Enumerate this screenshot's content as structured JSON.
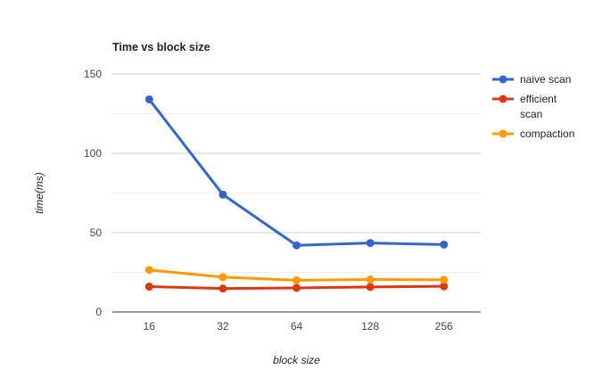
{
  "chart_data": {
    "type": "line",
    "title": "Time vs block size",
    "xlabel": "block size",
    "ylabel": "time(ms)",
    "categories": [
      "16",
      "32",
      "64",
      "128",
      "256"
    ],
    "ylim": [
      0,
      150
    ],
    "y_ticks": [
      "0",
      "50",
      "100",
      "150"
    ],
    "grid": true,
    "legend_position": "right",
    "series": [
      {
        "name": "naive scan",
        "name_lines": [
          "naive scan"
        ],
        "color": "#3366cc",
        "values": [
          134,
          74,
          42,
          43.5,
          42.5
        ]
      },
      {
        "name": "efficient scan",
        "name_lines": [
          "efficient",
          "scan"
        ],
        "color": "#dc3912",
        "values": [
          16,
          14.8,
          15.2,
          15.8,
          16.2
        ]
      },
      {
        "name": "compaction",
        "name_lines": [
          "compaction"
        ],
        "color": "#ff9900",
        "values": [
          26.5,
          22,
          20,
          20.5,
          20.3
        ]
      }
    ]
  }
}
